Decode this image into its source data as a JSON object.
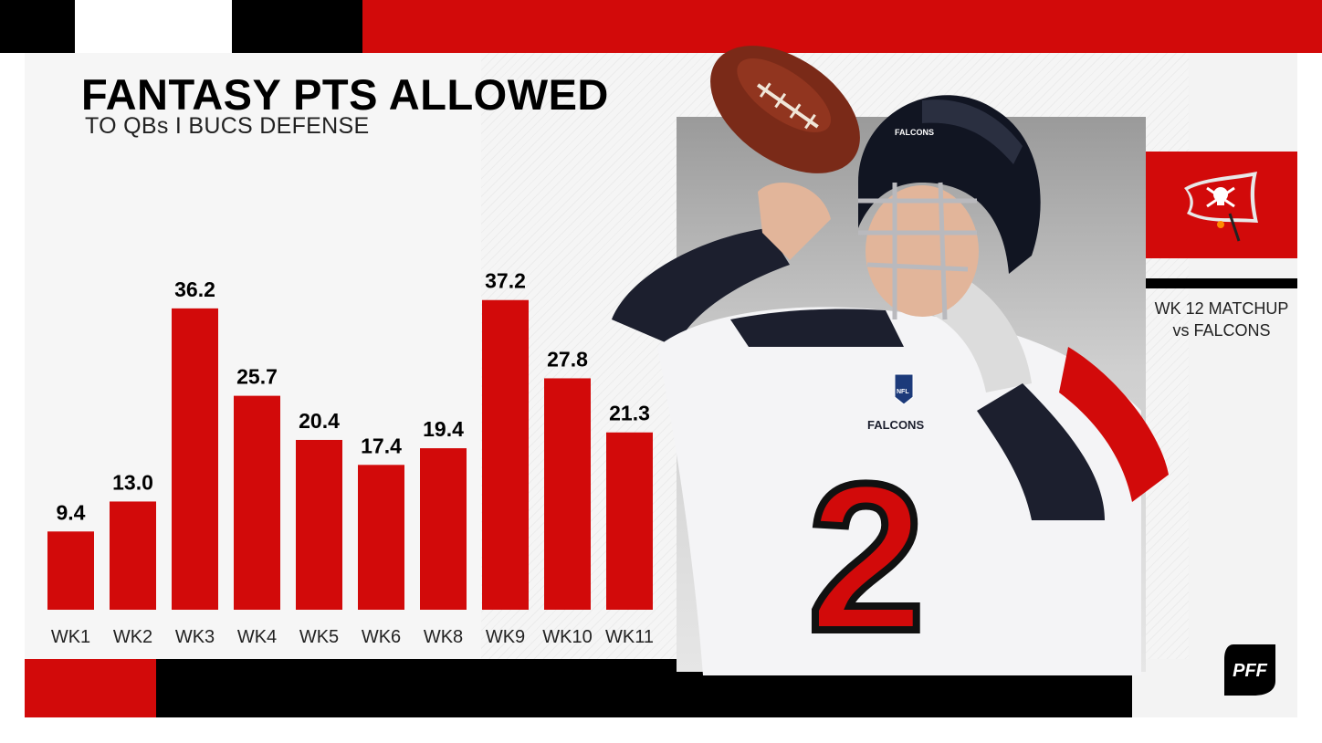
{
  "header": {
    "title": "FANTASY PTS ALLOWED",
    "subtitle": "TO QBs I BUCS DEFENSE"
  },
  "matchup": {
    "line1": "WK 12 MATCHUP",
    "line2": "vs FALCONS"
  },
  "brand": {
    "logo_text": "PFF",
    "player_jersey_number": "2",
    "jersey_text": "FALCONS",
    "helmet_text": "FALCONS",
    "shield_text": "NFL"
  },
  "colors": {
    "accent": "#d20a0a",
    "black": "#000000",
    "panel": "#f3f3f3"
  },
  "chart_data": {
    "type": "bar",
    "title": "FANTASY PTS ALLOWED",
    "subtitle": "TO QBs I BUCS DEFENSE",
    "categories": [
      "WK1",
      "WK2",
      "WK3",
      "WK4",
      "WK5",
      "WK6",
      "WK8",
      "WK9",
      "WK10",
      "WK11"
    ],
    "values": [
      9.4,
      13.0,
      36.2,
      25.7,
      20.4,
      17.4,
      19.4,
      37.2,
      27.8,
      21.3
    ],
    "value_labels": [
      "9.4",
      "13.0",
      "36.2",
      "25.7",
      "20.4",
      "17.4",
      "19.4",
      "37.2",
      "27.8",
      "21.3"
    ],
    "bar_color": "#d20a0a",
    "grid": false,
    "legend": "none"
  }
}
